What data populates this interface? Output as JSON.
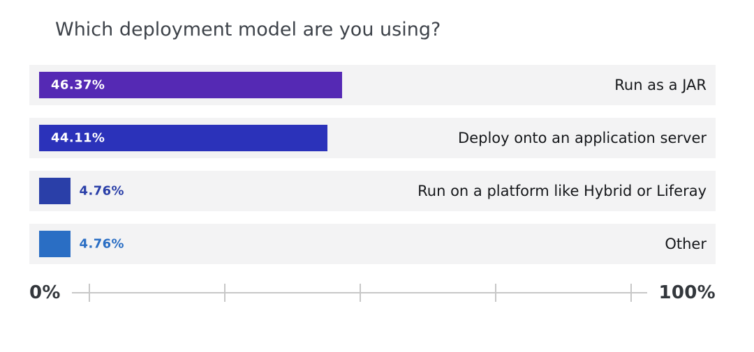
{
  "title": "Which deployment model are you using?",
  "chart_data": {
    "type": "bar",
    "orientation": "horizontal",
    "title": "Which deployment model are you using?",
    "categories": [
      "Run as a JAR",
      "Deploy onto an application server",
      "Run on a platform like Hybrid or Liferay",
      "Other"
    ],
    "values": [
      46.37,
      44.11,
      4.76,
      4.76
    ],
    "value_labels": [
      "46.37%",
      "44.11%",
      "4.76%",
      "4.76%"
    ],
    "bar_colors": [
      "#5529B4",
      "#2B32BA",
      "#2A3FA8",
      "#2A6EC4"
    ],
    "value_label_inside": [
      true,
      true,
      false,
      false
    ],
    "row_background": "#F3F3F4",
    "xlim": [
      0,
      100
    ],
    "axis": {
      "min_label": "0%",
      "max_label": "100%",
      "tick_count": 5,
      "line_color": "#C7C7C7",
      "grid": false
    },
    "legend": "none"
  }
}
